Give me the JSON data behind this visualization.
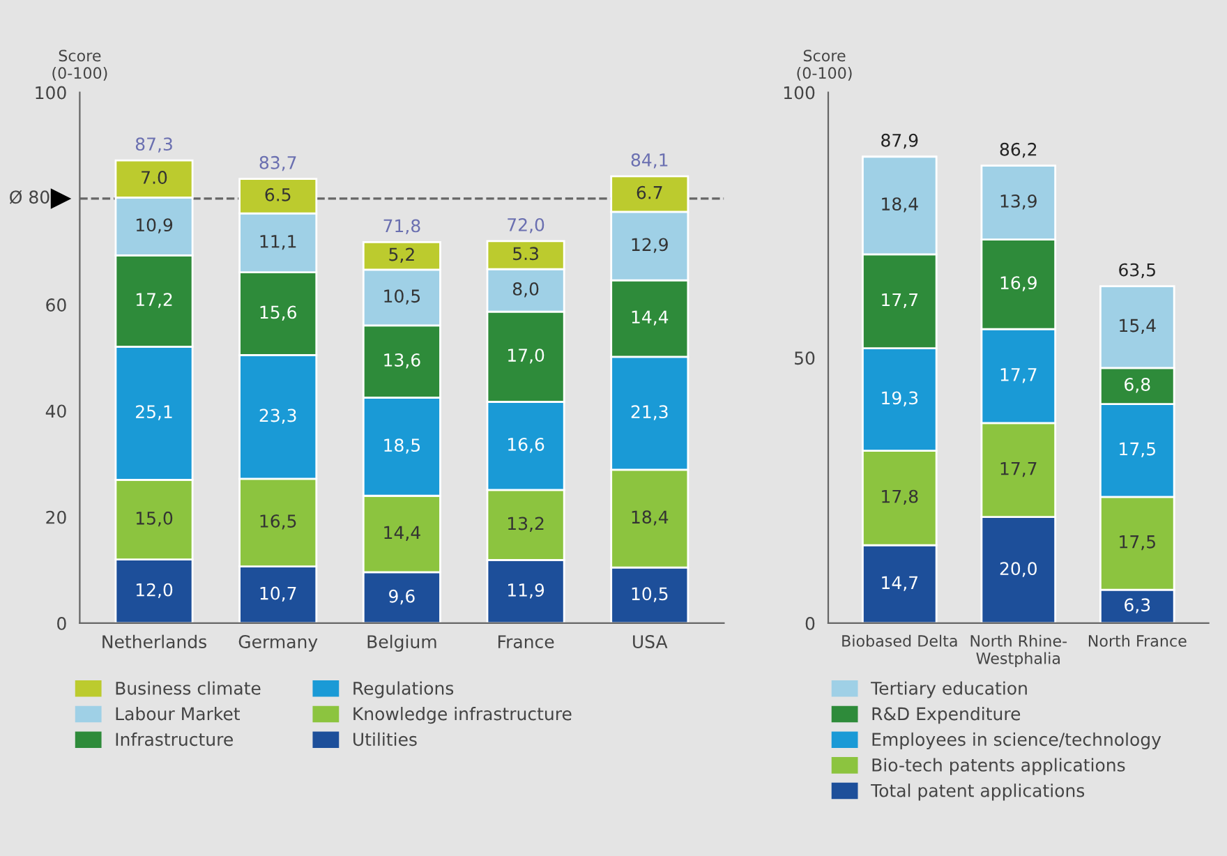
{
  "chart_data": [
    {
      "type": "bar",
      "stacked": true,
      "ylabel": "Score\n(0-100)",
      "categories": [
        "Netherlands",
        "Germany",
        "Belgium",
        "France",
        "USA"
      ],
      "ylim": [
        0,
        100
      ],
      "yticks": [
        0,
        20,
        40,
        60,
        100
      ],
      "grid": false,
      "legend": "bottom",
      "series": [
        {
          "name": "Utilities",
          "color": "#1d4f9a",
          "values": [
            12.0,
            10.7,
            9.6,
            11.9,
            10.5
          ],
          "value_labels": [
            "12,0",
            "10,7",
            "9,6",
            "11,9",
            "10,5"
          ]
        },
        {
          "name": "Knowledge infrastructure",
          "color": "#8cc43f",
          "values": [
            15.0,
            16.5,
            14.4,
            13.2,
            18.4
          ],
          "value_labels": [
            "15,0",
            "16,5",
            "14,4",
            "13,2",
            "18,4"
          ]
        },
        {
          "name": "Regulations",
          "color": "#1a9ad6",
          "values": [
            25.1,
            23.3,
            18.5,
            16.6,
            21.3
          ],
          "value_labels": [
            "25,1",
            "23,3",
            "18,5",
            "16,6",
            "21,3"
          ]
        },
        {
          "name": "Infrastructure",
          "color": "#2e8b3a",
          "values": [
            17.2,
            15.6,
            13.6,
            17.0,
            14.4
          ],
          "value_labels": [
            "17,2",
            "15,6",
            "13,6",
            "17,0",
            "14,4"
          ]
        },
        {
          "name": "Labour Market",
          "color": "#9fd0e6",
          "values": [
            10.9,
            11.1,
            10.5,
            8.0,
            12.9
          ],
          "value_labels": [
            "10,9",
            "11,1",
            "10,5",
            "8,0",
            "12,9"
          ]
        },
        {
          "name": "Business climate",
          "color": "#bccb2e",
          "values": [
            7.0,
            6.5,
            5.2,
            5.3,
            6.7
          ],
          "value_labels": [
            "7.0",
            "6.5",
            "5,2",
            "5.3",
            "6.7"
          ]
        }
      ],
      "totals": [
        "87,3",
        "83,7",
        "71,8",
        "72,0",
        "84,1"
      ],
      "ref_lines": [
        {
          "axis": "y",
          "value": 80,
          "label": "Ø 80",
          "color": "#666666",
          "line_style": "dashed"
        }
      ]
    },
    {
      "type": "bar",
      "stacked": true,
      "ylabel": "Score\n(0-100)",
      "categories": [
        "Biobased Delta",
        "North Rhine-\nWestphalia",
        "North France"
      ],
      "ylim": [
        0,
        100
      ],
      "yticks": [
        0,
        50,
        100
      ],
      "grid": false,
      "legend": "bottom",
      "series": [
        {
          "name": "Total patent applications",
          "color": "#1d4f9a",
          "values": [
            14.7,
            20.0,
            6.3
          ],
          "value_labels": [
            "14,7",
            "20,0",
            "6,3"
          ]
        },
        {
          "name": "Bio-tech patents applications",
          "color": "#8cc43f",
          "values": [
            17.8,
            17.7,
            17.5
          ],
          "value_labels": [
            "17,8",
            "17,7",
            "17,5"
          ]
        },
        {
          "name": "Employees in science/technology",
          "color": "#1a9ad6",
          "values": [
            19.3,
            17.7,
            17.5
          ],
          "value_labels": [
            "19,3",
            "17,7",
            "17,5"
          ]
        },
        {
          "name": "R&D Expenditure",
          "color": "#2e8b3a",
          "values": [
            17.7,
            16.9,
            6.8
          ],
          "value_labels": [
            "17,7",
            "16,9",
            "6,8"
          ]
        },
        {
          "name": "Tertiary education",
          "color": "#9fd0e6",
          "values": [
            18.4,
            13.9,
            15.4
          ],
          "value_labels": [
            "18,4",
            "13,9",
            "15,4"
          ]
        }
      ],
      "totals": [
        "87,9",
        "86,2",
        "63,5"
      ]
    }
  ]
}
